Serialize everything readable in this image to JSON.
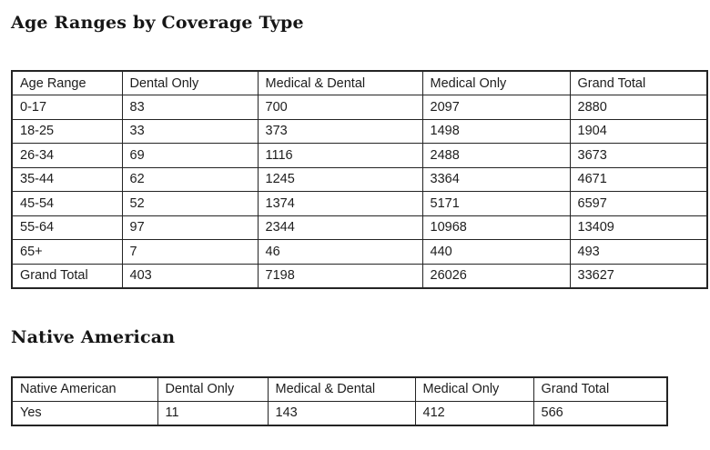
{
  "page": {
    "background_color": "#ffffff",
    "text_color": "#1d1d1d",
    "border_color": "#242424"
  },
  "chart_data": [
    {
      "type": "table",
      "title": "Age Ranges by Coverage Type",
      "columns": [
        "Age Range",
        "Dental Only",
        "Medical & Dental",
        "Medical Only",
        "Grand Total"
      ],
      "rows": [
        [
          "0-17",
          "83",
          "700",
          "2097",
          "2880"
        ],
        [
          "18-25",
          "33",
          "373",
          "1498",
          "1904"
        ],
        [
          "26-34",
          "69",
          "1116",
          "2488",
          "3673"
        ],
        [
          "35-44",
          "62",
          "1245",
          "3364",
          "4671"
        ],
        [
          "45-54",
          "52",
          "1374",
          "5171",
          "6597"
        ],
        [
          "55-64",
          "97",
          "2344",
          "10968",
          "13409"
        ],
        [
          "65+",
          "7",
          "46",
          "440",
          "493"
        ],
        [
          "Grand Total",
          "403",
          "7198",
          "26026",
          "33627"
        ]
      ]
    },
    {
      "type": "table",
      "title": "Native American",
      "columns": [
        "Native American",
        "Dental Only",
        "Medical & Dental",
        "Medical Only",
        "Grand Total"
      ],
      "rows": [
        [
          "Yes",
          "11",
          "143",
          "412",
          "566"
        ]
      ]
    }
  ]
}
